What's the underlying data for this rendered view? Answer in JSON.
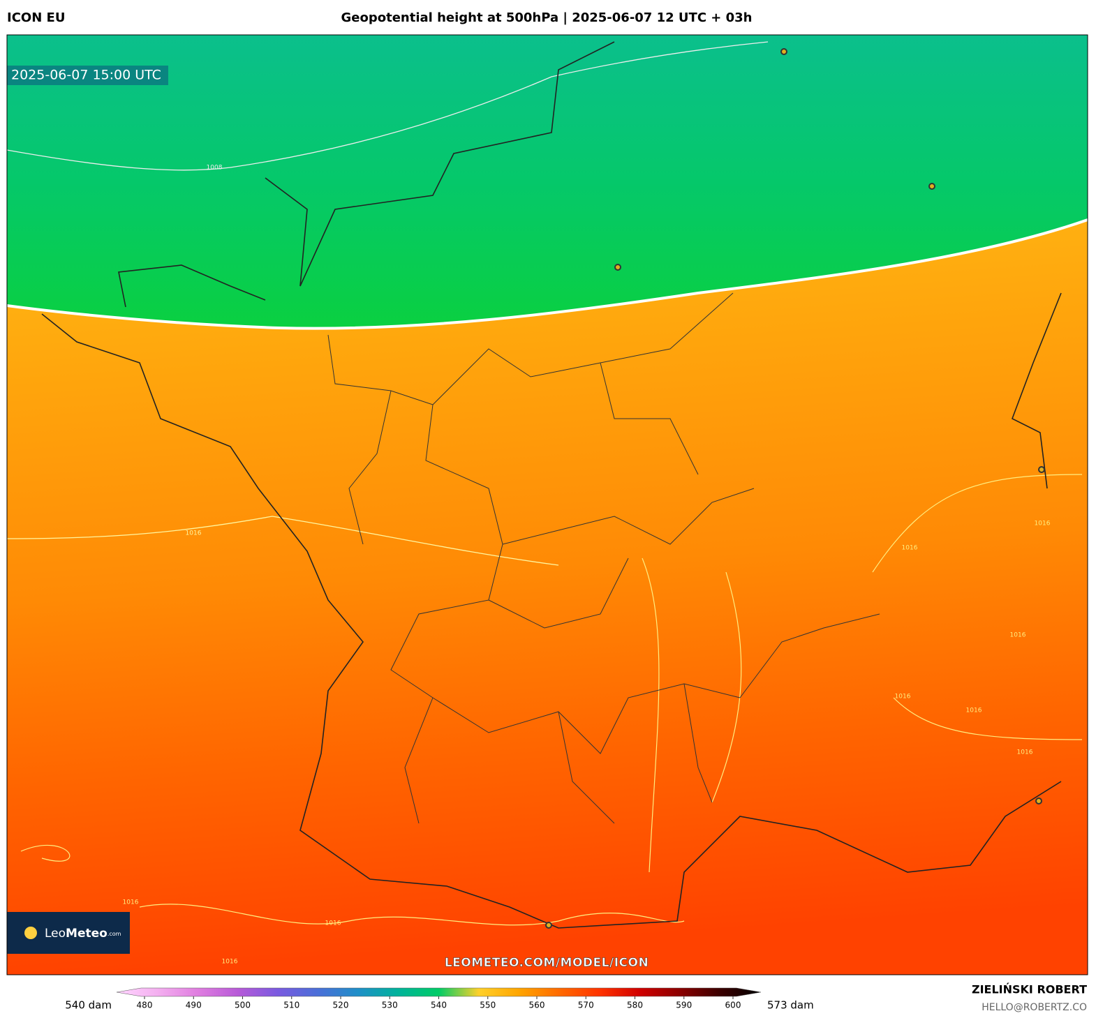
{
  "header": {
    "model": "ICON EU",
    "title": "Geopotential height at 500hPa | 2025-06-07 12 UTC + 03h"
  },
  "map": {
    "valid_time": "2025-06-07 15:00 UTC",
    "watermark": "LEOMETEO.COM/MODEL/ICON",
    "logo": {
      "brand_light": "Leo",
      "brand_bold": "Meteo",
      "suffix": ".com"
    },
    "contour_labels": [
      "1008",
      "1016",
      "1016",
      "1016",
      "1016",
      "1016",
      "1016",
      "1016",
      "1016",
      "1016",
      "1016"
    ]
  },
  "colorbar": {
    "min_label": "540 dam",
    "max_label": "573 dam",
    "ticks": [
      480,
      490,
      500,
      510,
      520,
      530,
      540,
      550,
      560,
      570,
      580,
      590,
      600
    ],
    "colors": [
      "#ffd6ff",
      "#f4b0f0",
      "#e07ee0",
      "#b85ad8",
      "#7a5ae0",
      "#4a6fd8",
      "#1f8fc8",
      "#00b39a",
      "#00cc66",
      "#ffd02a",
      "#ffa500",
      "#ff6a00",
      "#ff3300",
      "#d00000",
      "#8a0000",
      "#3a0000",
      "#000000"
    ]
  },
  "footer": {
    "author": "ZIELIŃSKI ROBERT",
    "email": "HELLO@ROBERTZ.CO"
  }
}
